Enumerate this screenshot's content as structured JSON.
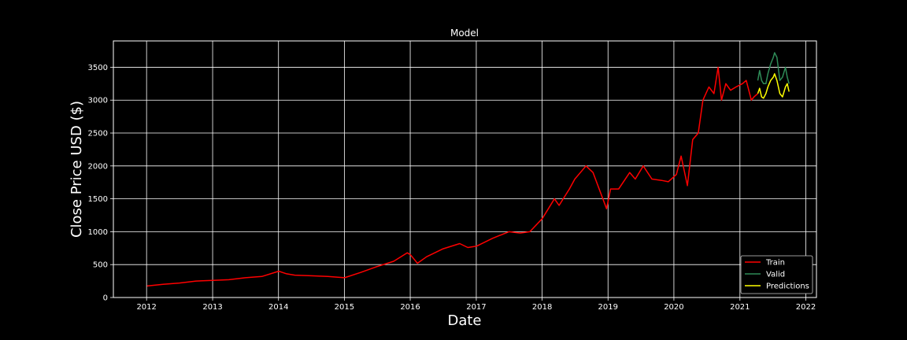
{
  "chart_data": {
    "type": "line",
    "title": "Model",
    "xlabel": "Date",
    "ylabel": "Close Price USD ($)",
    "xlim": [
      "2011-07-01",
      "2022-03-01"
    ],
    "ylim": [
      0,
      3900
    ],
    "x_ticks": [
      "2012",
      "2013",
      "2014",
      "2015",
      "2016",
      "2017",
      "2018",
      "2019",
      "2020",
      "2021",
      "2022"
    ],
    "y_ticks": [
      "0",
      "500",
      "1000",
      "1500",
      "2000",
      "2500",
      "3000",
      "3500"
    ],
    "grid": true,
    "legend_position": "lower-right",
    "colors": {
      "background": "#000000",
      "grid": "#ffffff",
      "text": "#ffffff",
      "train": "#ff0000",
      "valid": "#2e8b57",
      "predictions": "#ffff00"
    },
    "series": [
      {
        "name": "Train",
        "color": "#ff0000",
        "x": [
          "2012-01-03",
          "2012-04-01",
          "2012-07-01",
          "2012-10-01",
          "2013-01-02",
          "2013-04-01",
          "2013-07-01",
          "2013-10-01",
          "2014-01-02",
          "2014-02-15",
          "2014-04-01",
          "2014-07-01",
          "2014-10-01",
          "2015-01-02",
          "2015-04-01",
          "2015-07-01",
          "2015-10-01",
          "2015-12-15",
          "2016-01-02",
          "2016-02-10",
          "2016-04-01",
          "2016-07-01",
          "2016-10-01",
          "2016-11-15",
          "2017-01-02",
          "2017-04-01",
          "2017-07-01",
          "2017-09-01",
          "2017-10-25",
          "2018-01-02",
          "2018-03-10",
          "2018-04-05",
          "2018-06-01",
          "2018-07-01",
          "2018-09-01",
          "2018-10-10",
          "2018-11-20",
          "2018-12-24",
          "2019-01-15",
          "2019-03-01",
          "2019-05-01",
          "2019-06-01",
          "2019-07-15",
          "2019-09-01",
          "2019-10-25",
          "2019-12-01",
          "2020-01-15",
          "2020-02-10",
          "2020-03-16",
          "2020-04-14",
          "2020-05-15",
          "2020-06-10",
          "2020-07-13",
          "2020-08-10",
          "2020-09-02",
          "2020-09-21",
          "2020-10-15",
          "2020-11-10",
          "2020-12-10",
          "2021-01-15",
          "2021-02-05",
          "2021-03-05",
          "2021-03-20",
          "2021-04-10"
        ],
        "y": [
          175,
          200,
          220,
          250,
          260,
          270,
          300,
          320,
          400,
          360,
          340,
          330,
          320,
          300,
          380,
          470,
          550,
          680,
          650,
          520,
          620,
          740,
          820,
          760,
          780,
          900,
          1000,
          980,
          1000,
          1200,
          1500,
          1400,
          1650,
          1800,
          2000,
          1900,
          1600,
          1350,
          1650,
          1650,
          1900,
          1800,
          2000,
          1800,
          1780,
          1760,
          1870,
          2150,
          1700,
          2400,
          2500,
          3000,
          3200,
          3100,
          3500,
          3000,
          3250,
          3150,
          3200,
          3250,
          3300,
          3000,
          3050,
          3100
        ]
      },
      {
        "name": "Valid",
        "color": "#2e8b57",
        "x": [
          "2021-04-10",
          "2021-04-20",
          "2021-05-01",
          "2021-05-12",
          "2021-05-25",
          "2021-06-05",
          "2021-06-20",
          "2021-07-05",
          "2021-07-12",
          "2021-07-25",
          "2021-08-10",
          "2021-08-25",
          "2021-09-10",
          "2021-09-20",
          "2021-09-30"
        ],
        "y": [
          3300,
          3450,
          3300,
          3250,
          3250,
          3400,
          3550,
          3650,
          3720,
          3650,
          3300,
          3350,
          3500,
          3350,
          3250
        ]
      },
      {
        "name": "Predictions",
        "color": "#ffff00",
        "x": [
          "2021-04-10",
          "2021-04-20",
          "2021-05-01",
          "2021-05-12",
          "2021-05-25",
          "2021-06-05",
          "2021-06-20",
          "2021-07-05",
          "2021-07-12",
          "2021-07-25",
          "2021-08-10",
          "2021-08-25",
          "2021-09-10",
          "2021-09-20",
          "2021-09-30"
        ],
        "y": [
          3100,
          3180,
          3050,
          3030,
          3100,
          3200,
          3300,
          3350,
          3400,
          3300,
          3100,
          3050,
          3200,
          3250,
          3130
        ]
      }
    ]
  }
}
